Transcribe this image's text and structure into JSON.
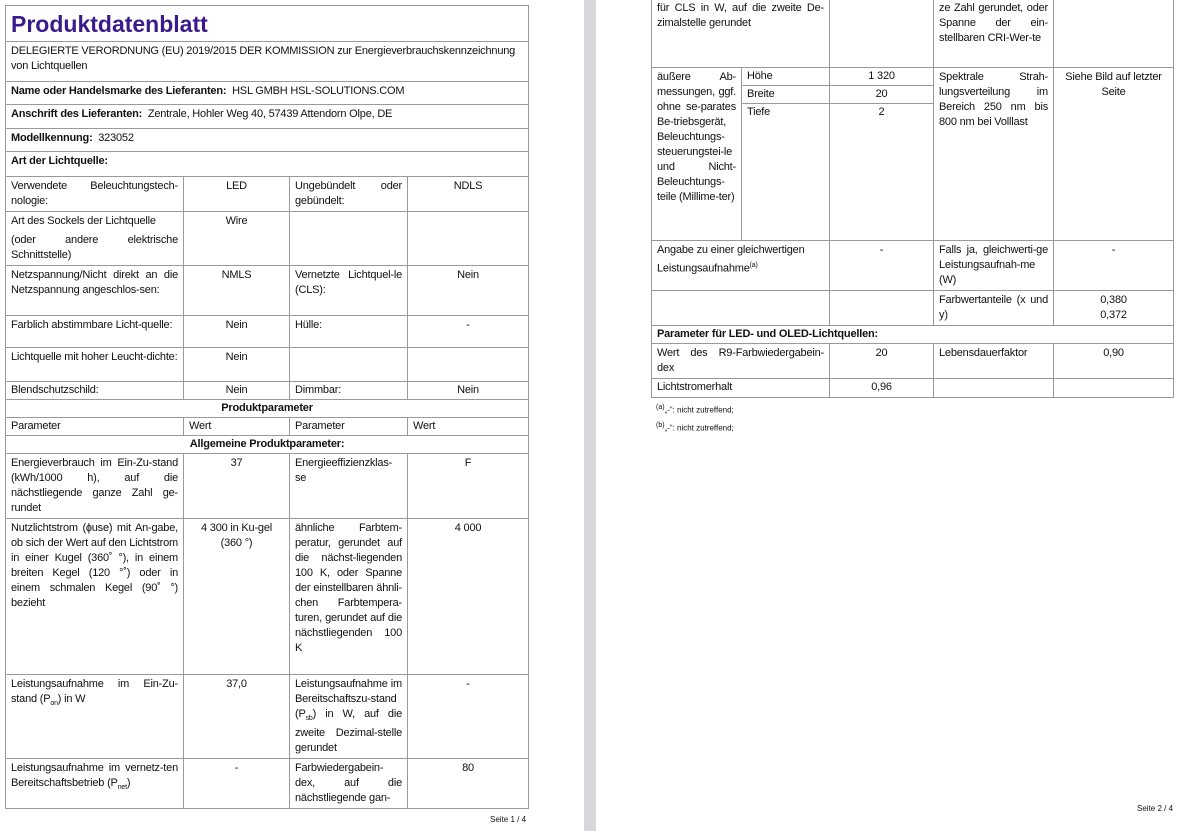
{
  "page1": {
    "title": "Produktdatenblatt",
    "regulation": "DELEGIERTE VERORDNUNG (EU) 2019/2015 DER KOMMISSION zur Energieverbrauchskennzeichnung von Lichtquellen",
    "supplier_label": "Name oder Handelsmarke des Lieferanten:",
    "supplier_value": "HSL GMBH HSL-SOLUTIONS.COM",
    "address_label": "Anschrift des Lieferanten:",
    "address_value": "Zentrale, Hohler Weg 40, 57439 Attendorn Olpe, DE",
    "model_label": "Modellkennung:",
    "model_value": "323052",
    "type_label": "Art der Lichtquelle:",
    "rows": [
      {
        "p1": "Verwendete Beleuchtungstech-nologie:",
        "v1": "LED",
        "p2": "Ungebündelt oder gebündelt:",
        "v2": "NDLS"
      },
      {
        "p1": "Art des Sockels der Lichtquelle",
        "p1b": "(oder andere elektrische Schnittstelle)",
        "v1": "Wire",
        "p2": "",
        "v2": ""
      },
      {
        "p1": "Netzspannung/Nicht direkt an die Netzspannung angeschlos-sen:",
        "v1": "NMLS",
        "p2": "Vernetzte Lichtquel-le (CLS):",
        "v2": "Nein"
      },
      {
        "p1": "Farblich abstimmbare Licht-quelle:",
        "v1": "Nein",
        "p2": "Hülle:",
        "v2": "-"
      },
      {
        "p1": "Lichtquelle mit hoher Leucht-dichte:",
        "v1": "Nein",
        "p2": "",
        "v2": ""
      },
      {
        "p1": "Blendschutzschild:",
        "v1": "Nein",
        "p2": "Dimmbar:",
        "v2": "Nein"
      }
    ],
    "product_params": "Produktparameter",
    "headers": [
      "Parameter",
      "Wert",
      "Parameter",
      "Wert"
    ],
    "general_params": "Allgemeine Produktparameter:",
    "params": [
      {
        "p1": "Energieverbrauch im Ein-Zu-stand (kWh/1000 h), auf die nächstliegende ganze Zahl ge-rundet",
        "v1": "37",
        "p2": "Energieeffizienzklas-se",
        "v2": "F"
      },
      {
        "p1": "Nutzlichtstrom (ɸuse) mit An-gabe, ob sich der Wert auf den Lichtstrom in einer Kugel (360˚ °), in einem breiten Kegel (120 °˚) oder in einem schmalen Kegel (90˚ °) bezieht",
        "v1": "4 300 in Ku-gel (360 °)",
        "p2": "ähnliche Farbtem-peratur, gerundet auf die nächst-liegenden 100 K, oder Spanne der einstellbaren ähnli-chen Farbtempera-turen, gerundet auf die nächstliegenden 100 K",
        "v2": "4 000"
      },
      {
        "p1a": "Leistungsaufnahme im Ein-Zu-stand (P",
        "p1sub": "on",
        "p1b": ") in W",
        "v1": "37,0",
        "p2a": "Leistungsaufnahme im Bereitschaftszu-stand (P",
        "p2sub": "sb",
        "p2b": ") in W, auf die zweite Dezimal-stelle gerundet",
        "v2": "-"
      },
      {
        "p1a": "Leistungsaufnahme im vernetz-ten Bereitschaftsbetrieb (P",
        "p1sub": "net",
        "p1b": ")",
        "v1": "-",
        "p2": "Farbwiedergabein-dex, auf die nächstliegende gan-",
        "v2": "80"
      }
    ],
    "page_number": "Seite 1 / 4"
  },
  "page2": {
    "cont": {
      "p1": "für CLS in W, auf die zweite De-zimalstelle gerundet",
      "v1": "",
      "p2": "ze Zahl gerundet, oder Spanne der ein-stellbaren CRI-Wer-te",
      "v2": ""
    },
    "dims": {
      "label": "äußere Ab-messungen, ggf. ohne se-parates Be-triebsgerät, Beleuchtungs-steuerungstei-le und Nicht-Beleuchtungs-teile (Millime-ter)",
      "items": [
        {
          "k": "Höhe",
          "v": "1 320"
        },
        {
          "k": "Breite",
          "v": "20"
        },
        {
          "k": "Tiefe",
          "v": "2"
        }
      ],
      "p2": "Spektrale Strah-lungsverteilung im Bereich 250 nm bis 800 nm bei Volllast",
      "v2": "Siehe Bild auf letzter Seite"
    },
    "equiv": {
      "p1": "Angabe zu einer gleichwertigen Leistungsaufnahme",
      "sup": "(a)",
      "v1": "-",
      "p2": "Falls ja, gleichwerti-ge Leistungsaufnah-me (W)",
      "v2": "-"
    },
    "chroma": {
      "p2": "Farbwertanteile (x und y)",
      "x": "0,380",
      "y": "0,372"
    },
    "led_header": "Parameter für LED- und OLED-Lichtquellen:",
    "r9": {
      "p1": "Wert des R9-Farbwiedergabein-dex",
      "v1": "20",
      "p2": "Lebensdauerfaktor",
      "v2": "0,90"
    },
    "lumen": {
      "p1": "Lichtstromerhalt",
      "v1": "0,96"
    },
    "footnotes": [
      {
        "mark": "(a)",
        "text": "„-“: nicht zutreffend;"
      },
      {
        "mark": "(b)",
        "text": "„-“: nicht zutreffend;"
      }
    ],
    "page_number": "Seite 2 / 4"
  }
}
